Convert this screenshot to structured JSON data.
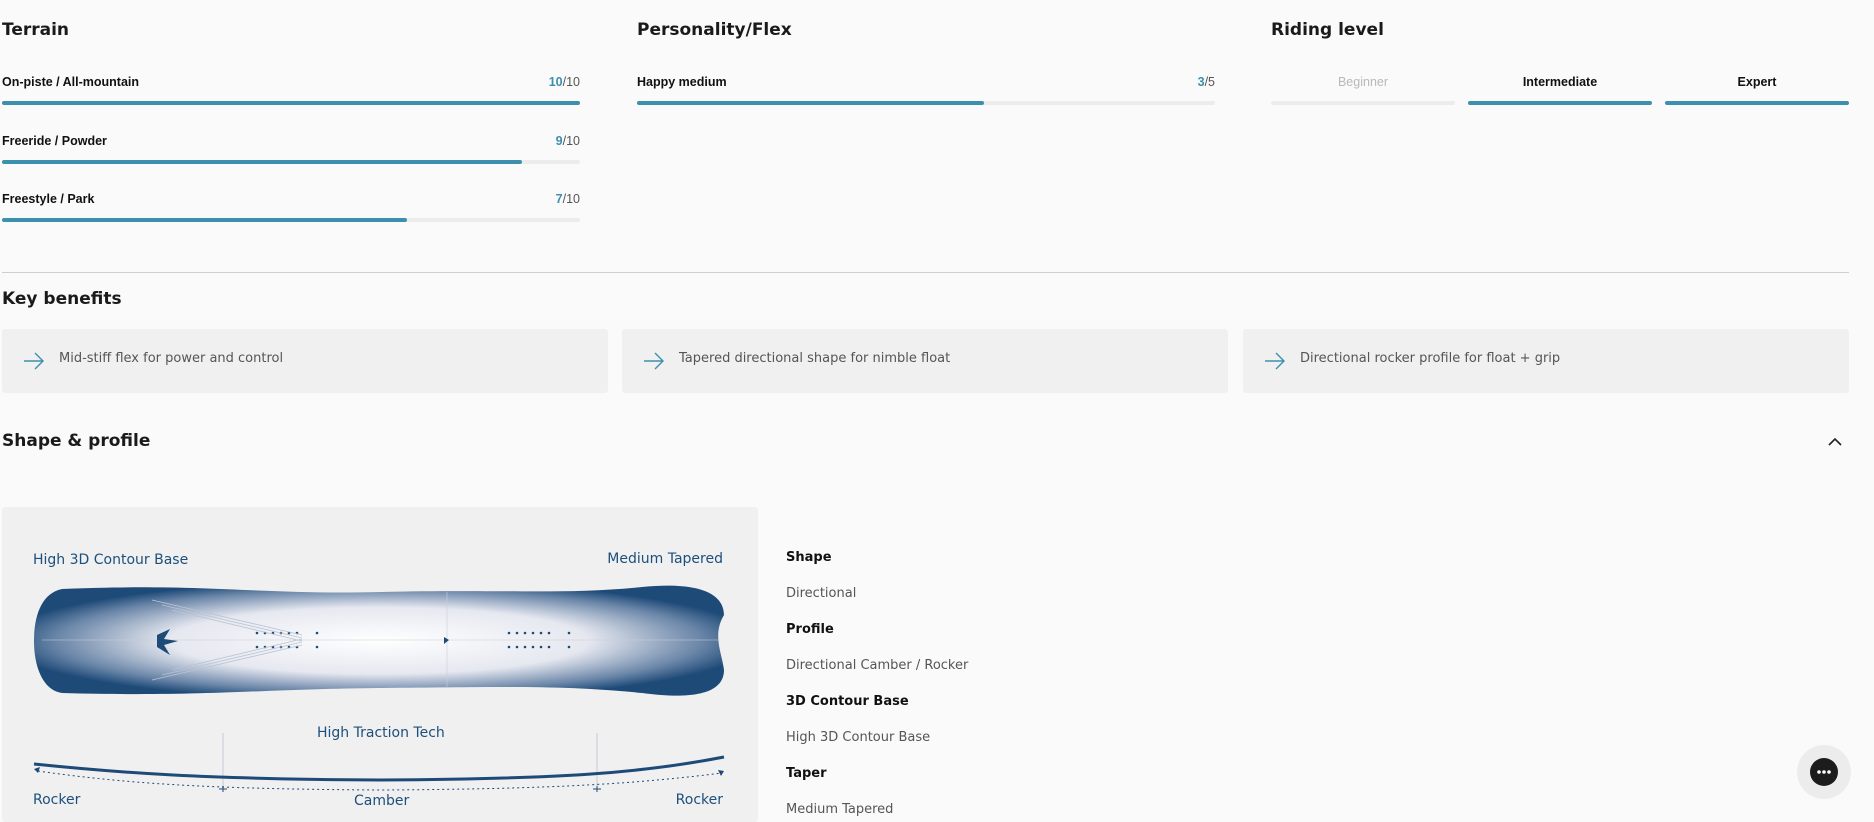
{
  "terrain": {
    "title": "Terrain",
    "rows": [
      {
        "label": "On-piste / All-mountain",
        "score": "10",
        "max": "/10",
        "fill": 1.0
      },
      {
        "label": "Freeride / Powder",
        "score": "9",
        "max": "/10",
        "fill": 0.9
      },
      {
        "label": "Freestyle / Park",
        "score": "7",
        "max": "/10",
        "fill": 0.7
      }
    ]
  },
  "personality": {
    "title": "Personality/Flex",
    "label": "Happy medium",
    "score": "3",
    "max": "/5",
    "fill": 0.6
  },
  "riding_level": {
    "title": "Riding level",
    "levels": [
      {
        "label": "Beginner",
        "active": false
      },
      {
        "label": "Intermediate",
        "active": true
      },
      {
        "label": "Expert",
        "active": true
      }
    ]
  },
  "key_benefits": {
    "title": "Key benefits",
    "items": [
      {
        "text": "Mid-stiff flex for power and control"
      },
      {
        "text": "Tapered directional shape for nimble float"
      },
      {
        "text": "Directional rocker profile for float + grip"
      }
    ]
  },
  "shape_profile": {
    "title": "Shape & profile",
    "diagram": {
      "top_left": "High 3D Contour Base",
      "top_right": "Medium Tapered",
      "center": "High Traction Tech",
      "bottom_left": "Rocker",
      "bottom_center": "Camber",
      "bottom_right": "Rocker"
    },
    "specs": [
      {
        "key": "Shape",
        "value": "Directional"
      },
      {
        "key": "Profile",
        "value": "Directional Camber / Rocker"
      },
      {
        "key": "3D Contour Base",
        "value": "High 3D Contour Base"
      },
      {
        "key": "Taper",
        "value": "Medium Tapered"
      }
    ]
  },
  "colors": {
    "accent": "#3d8fae",
    "diagram_blue": "#1d4f7c",
    "card_bg": "#f0f0f0"
  },
  "icons": {
    "benefit": "arrow-right-icon",
    "collapse": "chevron-up-icon",
    "chat": "chat-bubble-icon"
  }
}
